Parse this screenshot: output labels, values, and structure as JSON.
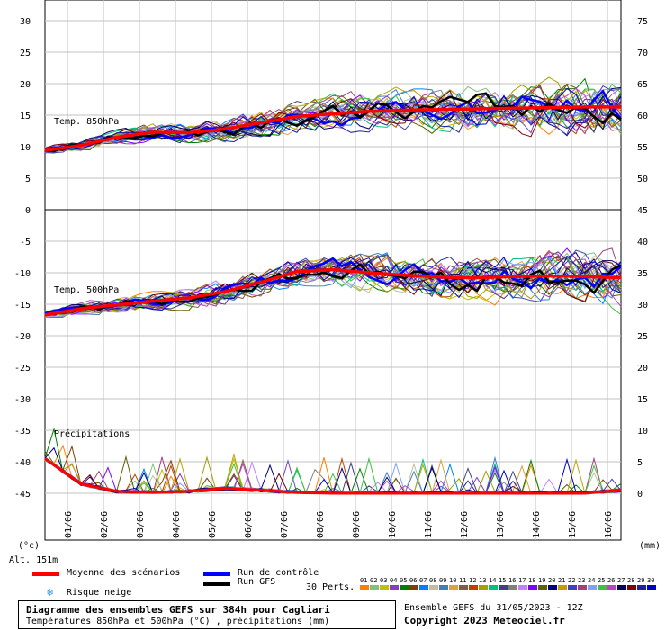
{
  "chart_data": {
    "type": "line",
    "title": "Diagramme des ensembles GEFS sur 384h pour Cagliari",
    "subtitle": "Températures 850hPa et 500hPa (°C) , précipitations (mm)",
    "run_info": "Ensemble GEFS du 31/05/2023 - 12Z",
    "copyright": "Copyright 2023 Meteociel.fr",
    "altitude": "Alt. 151m",
    "unit_left": "(°c)",
    "unit_right": "(mm)",
    "x_dates": [
      "01/06",
      "02/06",
      "03/06",
      "04/06",
      "05/06",
      "06/06",
      "07/06",
      "08/06",
      "09/06",
      "10/06",
      "11/06",
      "12/06",
      "13/06",
      "14/06",
      "15/06",
      "16/06"
    ],
    "left_ticks": [
      "30",
      "25",
      "20",
      "15",
      "10",
      "5",
      "0",
      "-5",
      "-10",
      "-15",
      "-20",
      "-25",
      "-30",
      "-35",
      "-40",
      "-45"
    ],
    "right_ticks": [
      "75",
      "70",
      "65",
      "60",
      "55",
      "50",
      "45",
      "40",
      "35",
      "30",
      "25",
      "20",
      "15",
      "10",
      "5",
      "0"
    ],
    "panels": [
      {
        "label": "Temp. 850hPa"
      },
      {
        "label": "Temp. 500hPa"
      },
      {
        "label": "Précipitations"
      }
    ],
    "series": [
      {
        "name": "Moyenne des scénarios",
        "color": "#ff0000",
        "t850": [
          9.4,
          10.2,
          11.5,
          12.3,
          12.2,
          12.8,
          13.8,
          14.8,
          15.2,
          15.6,
          15.8,
          15.9,
          16.0,
          16.1,
          16.2,
          16.3,
          16.3
        ],
        "t500": [
          -16.7,
          -15.7,
          -15.1,
          -14.5,
          -14.0,
          -13.0,
          -11.5,
          -9.8,
          -9.5,
          -10.0,
          -10.4,
          -10.7,
          -10.8,
          -10.6,
          -10.5,
          -10.6,
          -10.8
        ],
        "precip": [
          5.5,
          1.5,
          0.3,
          0.1,
          0.3,
          0.8,
          0.5,
          0.1,
          0.0,
          0.0,
          0.0,
          0.0,
          0.0,
          0.0,
          0.0,
          0.0,
          0.5
        ]
      },
      {
        "name": "Run de contrôle",
        "color": "#0000ff"
      },
      {
        "name": "Run GFS",
        "color": "#000000"
      }
    ],
    "perturbations_label": "30 Perts.",
    "perturbations": [
      {
        "id": "01",
        "color": "#ff8000"
      },
      {
        "id": "02",
        "color": "#80c080"
      },
      {
        "id": "03",
        "color": "#c0c000"
      },
      {
        "id": "04",
        "color": "#8040c0"
      },
      {
        "id": "05",
        "color": "#008000"
      },
      {
        "id": "06",
        "color": "#804000"
      },
      {
        "id": "07",
        "color": "#0080ff"
      },
      {
        "id": "08",
        "color": "#c0c0a0"
      },
      {
        "id": "09",
        "color": "#4080c0"
      },
      {
        "id": "10",
        "color": "#e0a040"
      },
      {
        "id": "11",
        "color": "#806040"
      },
      {
        "id": "12",
        "color": "#c04000"
      },
      {
        "id": "13",
        "color": "#a0a000"
      },
      {
        "id": "14",
        "color": "#00c080"
      },
      {
        "id": "15",
        "color": "#404080"
      },
      {
        "id": "16",
        "color": "#808080"
      },
      {
        "id": "17",
        "color": "#c080ff"
      },
      {
        "id": "18",
        "color": "#8000ff"
      },
      {
        "id": "19",
        "color": "#606000"
      },
      {
        "id": "20",
        "color": "#000080"
      },
      {
        "id": "21",
        "color": "#c0a000"
      },
      {
        "id": "22",
        "color": "#4040c0"
      },
      {
        "id": "23",
        "color": "#a04080"
      },
      {
        "id": "24",
        "color": "#80a0ff"
      },
      {
        "id": "25",
        "color": "#40c040"
      },
      {
        "id": "26",
        "color": "#c040c0"
      },
      {
        "id": "27",
        "color": "#000060"
      },
      {
        "id": "28",
        "color": "#800000"
      },
      {
        "id": "29",
        "color": "#2020a0"
      },
      {
        "id": "30",
        "color": "#0000c0"
      }
    ],
    "grid": true
  },
  "legend": {
    "mean": "Moyenne des scénarios",
    "control": "Run de contrôle",
    "gfs": "Run GFS",
    "snow": "Risque neige",
    "snow_icon": "snowflake-icon"
  }
}
